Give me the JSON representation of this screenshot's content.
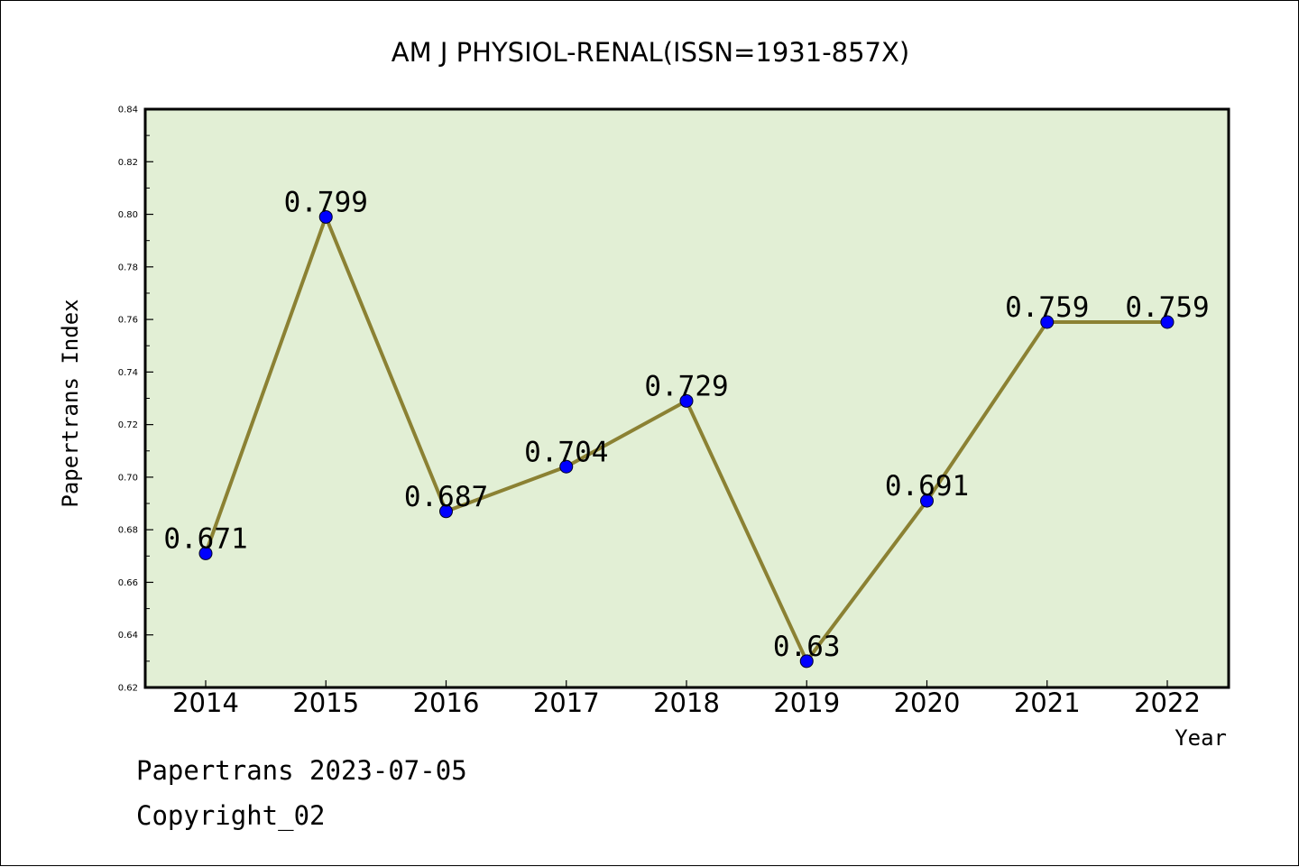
{
  "chart_data": {
    "type": "line",
    "title": "AM J PHYSIOL-RENAL(ISSN=1931-857X)",
    "xlabel": "Year",
    "ylabel": "Papertrans Index",
    "categories": [
      "2014",
      "2015",
      "2016",
      "2017",
      "2018",
      "2019",
      "2020",
      "2021",
      "2022"
    ],
    "series": [
      {
        "values": [
          0.671,
          0.799,
          0.687,
          0.704,
          0.729,
          0.63,
          0.691,
          0.759,
          0.759
        ]
      }
    ],
    "data_labels": [
      "0.671",
      "0.799",
      "0.687",
      "0.704",
      "0.729",
      "0.63",
      "0.691",
      "0.759",
      "0.759"
    ],
    "ylim": [
      0.62,
      0.84
    ],
    "yticks": [
      "0.62",
      "0.64",
      "0.66",
      "0.68",
      "0.70",
      "0.72",
      "0.74",
      "0.76",
      "0.78",
      "0.80",
      "0.82",
      "0.84"
    ],
    "grid": false,
    "legend": "none",
    "colors": {
      "plot_background": "#e2efd5",
      "line": "#8b8133",
      "marker": "#0000ff"
    }
  },
  "footer": {
    "line1": "Papertrans 2023-07-05",
    "line2": "Copyright_02"
  }
}
